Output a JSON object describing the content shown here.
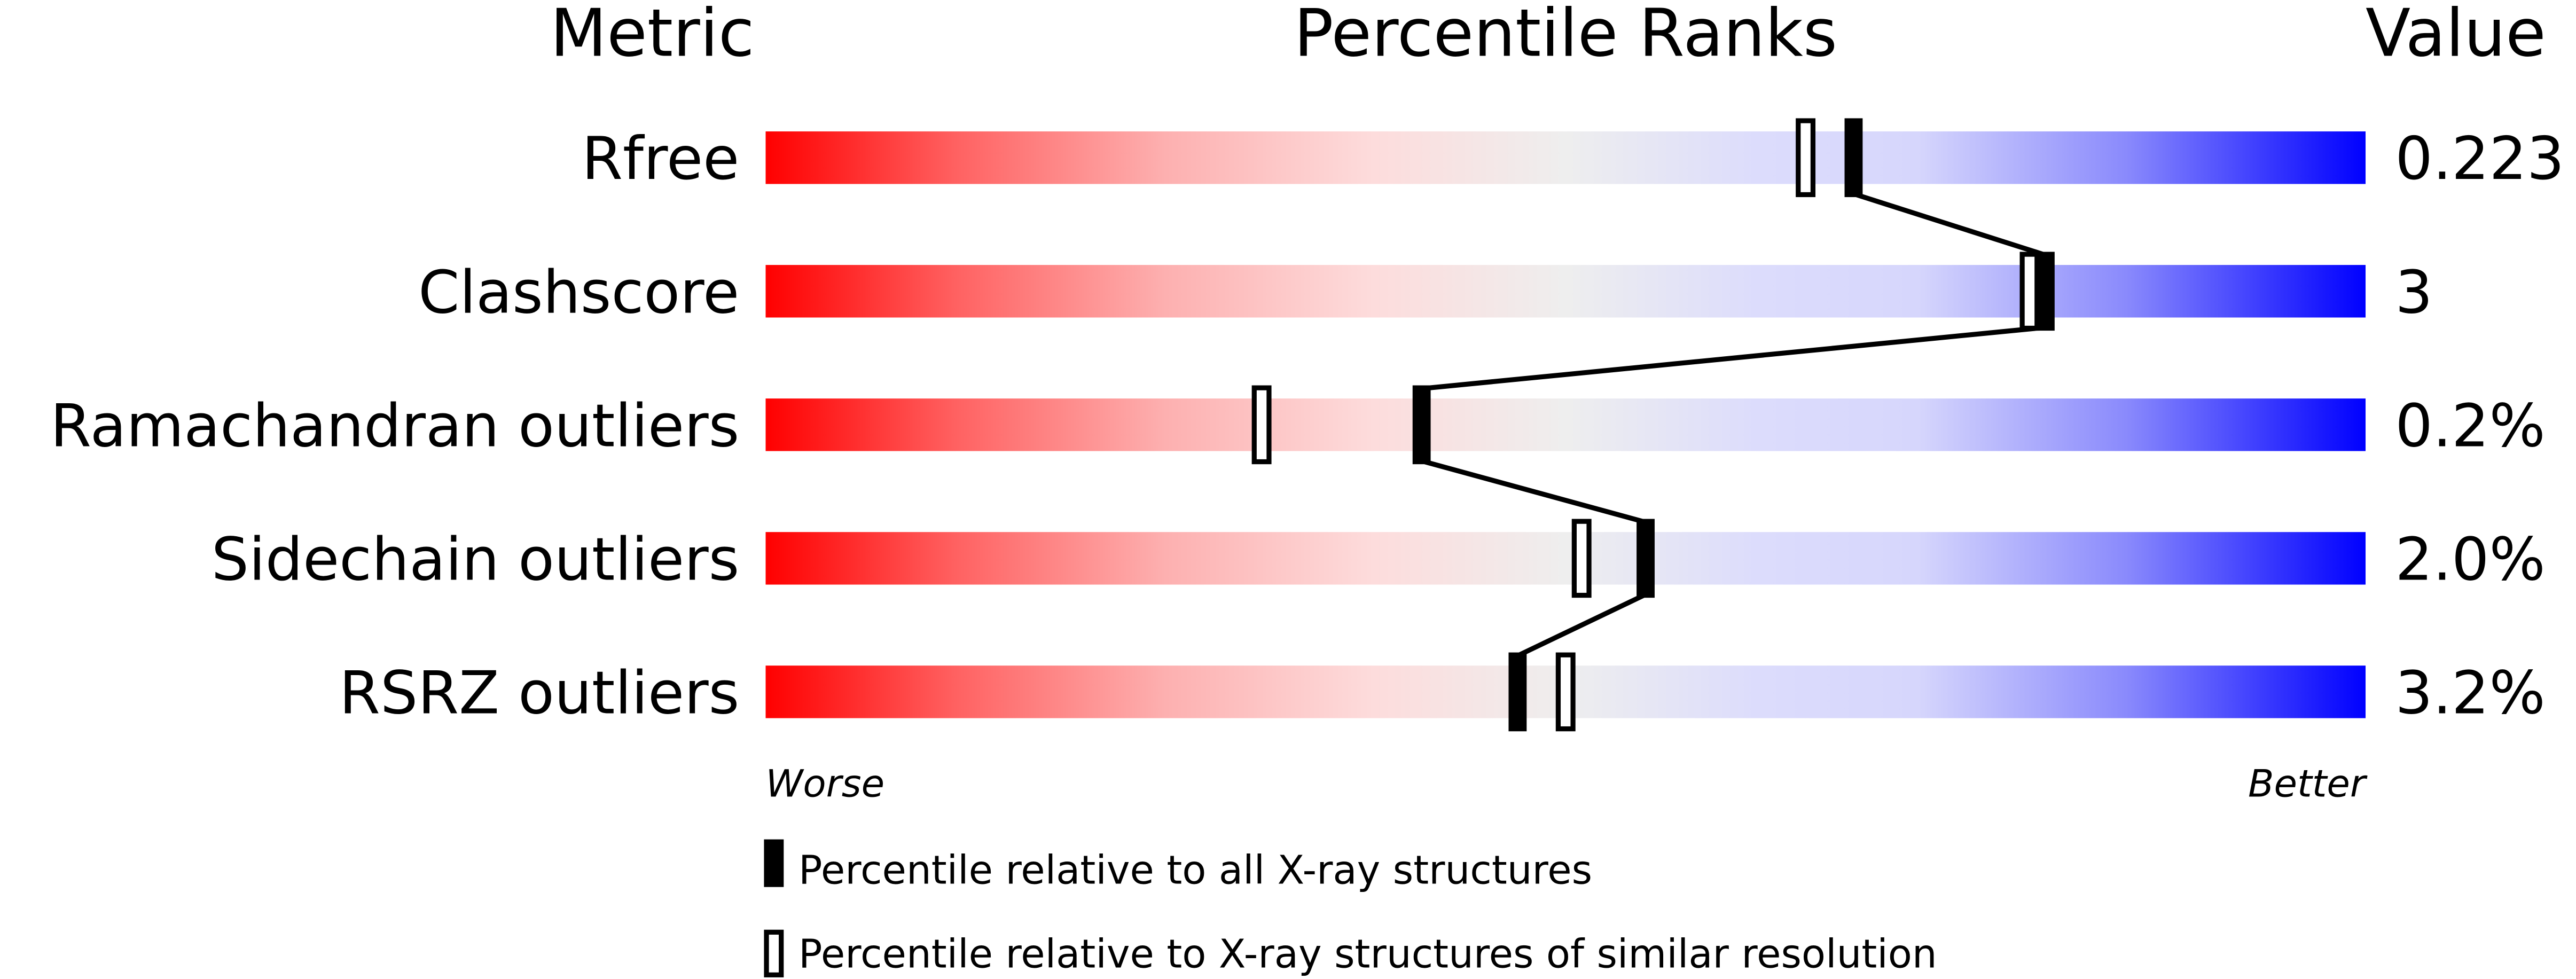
{
  "chart_data": {
    "type": "percentile-bars",
    "headers": {
      "metric": "Metric",
      "ranks": "Percentile Ranks",
      "value": "Value"
    },
    "xlim": [
      0,
      100
    ],
    "axis_labels": {
      "left": "Worse",
      "right": "Better"
    },
    "colors": {
      "worse": "#ff0000",
      "middle": "#eeeeee",
      "better": "#0000ff"
    },
    "metrics": [
      {
        "label": "Rfree",
        "value": "0.223",
        "percentile_all": 68,
        "percentile_similar": 65
      },
      {
        "label": "Clashscore",
        "value": "3",
        "percentile_all": 80,
        "percentile_similar": 79
      },
      {
        "label": "Ramachandran outliers",
        "value": "0.2%",
        "percentile_all": 41,
        "percentile_similar": 31
      },
      {
        "label": "Sidechain outliers",
        "value": "2.0%",
        "percentile_all": 55,
        "percentile_similar": 51
      },
      {
        "label": "RSRZ outliers",
        "value": "3.2%",
        "percentile_all": 47,
        "percentile_similar": 50
      }
    ],
    "legend": [
      {
        "marker": "filled",
        "text": "Percentile relative to all X-ray structures"
      },
      {
        "marker": "open",
        "text": "Percentile relative to X-ray structures of similar resolution"
      }
    ]
  }
}
